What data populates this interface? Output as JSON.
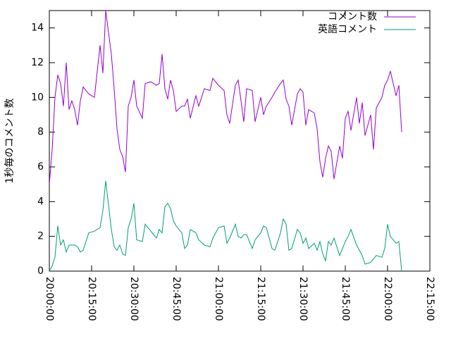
{
  "chart_data": {
    "type": "line",
    "y_label": "1秒毎のコメント数",
    "x": [
      "20:00:00",
      "20:01:00",
      "20:02:00",
      "20:03:00",
      "20:04:00",
      "20:05:00",
      "20:06:00",
      "20:07:00",
      "20:08:00",
      "20:09:00",
      "20:10:00",
      "20:11:00",
      "20:12:00",
      "20:14:00",
      "20:16:00",
      "20:18:00",
      "20:19:00",
      "20:20:00",
      "20:22:00",
      "20:23:00",
      "20:24:00",
      "20:25:00",
      "20:26:00",
      "20:27:00",
      "20:28:00",
      "20:29:00",
      "20:30:00",
      "20:31:00",
      "20:33:00",
      "20:34:00",
      "20:36:00",
      "20:38:00",
      "20:39:00",
      "20:40:00",
      "20:41:00",
      "20:42:00",
      "20:43:00",
      "20:44:00",
      "20:45:00",
      "20:47:00",
      "20:48:00",
      "20:49:00",
      "20:50:00",
      "20:52:00",
      "20:53:00",
      "20:55:00",
      "20:57:00",
      "20:58:00",
      "21:00:00",
      "21:02:00",
      "21:03:00",
      "21:04:00",
      "21:06:00",
      "21:07:00",
      "21:08:00",
      "21:09:00",
      "21:10:00",
      "21:12:00",
      "21:13:00",
      "21:15:00",
      "21:16:00",
      "21:17:00",
      "21:19:00",
      "21:20:00",
      "21:22:00",
      "21:23:00",
      "21:24:00",
      "21:25:00",
      "21:26:00",
      "21:28:00",
      "21:29:00",
      "21:30:00",
      "21:31:00",
      "21:32:00",
      "21:34:00",
      "21:35:00",
      "21:36:00",
      "21:37:00",
      "21:38:00",
      "21:39:00",
      "21:40:00",
      "21:41:00",
      "21:43:00",
      "21:44:00",
      "21:45:00",
      "21:46:00",
      "21:47:00",
      "21:49:00",
      "21:50:00",
      "21:51:00",
      "21:52:00",
      "21:54:00",
      "21:55:00",
      "21:56:00",
      "21:58:00",
      "21:59:00",
      "22:00:00",
      "22:01:00",
      "22:03:00",
      "22:04:00",
      "22:05:00"
    ],
    "series": [
      {
        "name": "コメント数",
        "color": "#9400d3",
        "values": [
          5.0,
          7.0,
          10.0,
          11.3,
          10.8,
          9.5,
          12.0,
          9.3,
          9.8,
          9.3,
          8.4,
          9.8,
          10.6,
          10.2,
          10.0,
          13.0,
          11.4,
          15.0,
          12.5,
          10.5,
          8.2,
          7.0,
          6.6,
          5.7,
          9.5,
          10.0,
          11.0,
          9.5,
          8.8,
          10.8,
          10.9,
          10.7,
          10.8,
          12.5,
          10.5,
          9.9,
          11.0,
          10.4,
          9.2,
          9.5,
          9.5,
          9.9,
          8.8,
          10.1,
          9.5,
          10.5,
          10.4,
          11.1,
          10.7,
          10.4,
          9.0,
          8.5,
          10.7,
          11.0,
          9.8,
          8.6,
          10.5,
          10.4,
          8.6,
          10.0,
          9.0,
          9.5,
          10.0,
          10.3,
          10.8,
          11.0,
          9.9,
          9.5,
          8.4,
          10.2,
          10.5,
          10.3,
          8.4,
          9.3,
          9.1,
          8.2,
          6.3,
          5.4,
          6.5,
          7.2,
          6.9,
          5.3,
          7.2,
          6.5,
          8.8,
          9.2,
          8.1,
          10.0,
          8.5,
          9.7,
          7.8,
          9.0,
          7.0,
          9.4,
          10.0,
          10.7,
          11.0,
          11.5,
          10.1,
          10.7,
          8.0
        ]
      },
      {
        "name": "英語コメント",
        "color": "#009e73",
        "values": [
          0.0,
          0.3,
          0.8,
          2.6,
          1.5,
          1.8,
          1.1,
          1.5,
          1.5,
          1.5,
          1.4,
          1.1,
          1.2,
          2.2,
          2.3,
          2.5,
          3.5,
          5.2,
          2.4,
          1.4,
          1.2,
          1.5,
          1.0,
          0.9,
          2.5,
          3.0,
          3.9,
          1.8,
          1.7,
          2.7,
          2.3,
          1.9,
          2.4,
          2.2,
          3.7,
          3.9,
          3.6,
          2.9,
          2.6,
          2.2,
          1.3,
          1.5,
          2.4,
          2.2,
          1.8,
          1.5,
          1.4,
          1.9,
          2.5,
          2.6,
          1.6,
          1.9,
          2.7,
          2.0,
          1.9,
          2.1,
          2.1,
          1.3,
          1.8,
          2.2,
          2.6,
          2.5,
          1.3,
          1.2,
          2.2,
          3.0,
          2.7,
          1.2,
          1.3,
          2.4,
          2.2,
          1.6,
          1.9,
          1.3,
          1.6,
          1.2,
          1.7,
          1.0,
          0.6,
          1.7,
          1.5,
          1.9,
          0.9,
          1.3,
          1.7,
          2.0,
          2.4,
          1.5,
          1.2,
          0.9,
          0.4,
          0.5,
          0.7,
          0.9,
          0.8,
          1.3,
          2.7,
          2.0,
          1.6,
          1.7,
          0.0
        ]
      }
    ],
    "xlim": [
      "20:00:00",
      "22:15:00"
    ],
    "xticks": [
      "20:00:00",
      "20:15:00",
      "20:30:00",
      "20:45:00",
      "21:00:00",
      "21:15:00",
      "21:30:00",
      "21:45:00",
      "22:00:00",
      "22:15:00"
    ],
    "ylim": [
      0,
      15
    ],
    "yticks": [
      0,
      2,
      4,
      6,
      8,
      10,
      12,
      14
    ],
    "grid": false,
    "legend": "top-right"
  }
}
